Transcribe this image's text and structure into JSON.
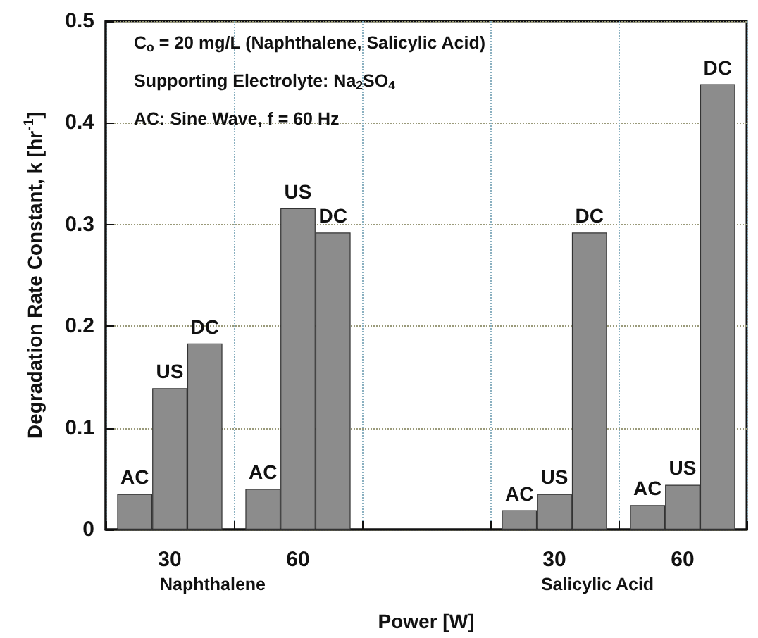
{
  "chart_data": {
    "type": "bar",
    "categories": [
      "30",
      "60",
      null,
      "30",
      "60"
    ],
    "series": [
      {
        "name": "AC",
        "color": "#8c8c8c",
        "values": [
          0.035,
          0.04,
          null,
          0.019,
          0.024
        ]
      },
      {
        "name": "US",
        "color": "#8c8c8c",
        "values": [
          0.139,
          0.316,
          null,
          0.035,
          0.044
        ]
      },
      {
        "name": "DC",
        "color": "#8c8c8c",
        "values": [
          0.183,
          0.292,
          null,
          0.292,
          0.438
        ]
      }
    ],
    "xlabel": "Power [W]",
    "ylabel": "Degradation Rate Constant, k [hr$^{-1}$]",
    "ylim": [
      0,
      0.5
    ],
    "yticks": [
      0,
      0.1,
      0.2,
      0.3,
      0.4,
      0.5
    ],
    "grid": true,
    "legend": false,
    "annotations": [
      "C$_{o}$ = 20 mg/L (Naphthalene, Salicylic Acid)",
      "Supporting Electrolyte: Na$_{2}$SO$_{4}$",
      "AC: Sine Wave, f = 60 Hz",
      "Naphthalene",
      "Salicylic Acid"
    ]
  }
}
